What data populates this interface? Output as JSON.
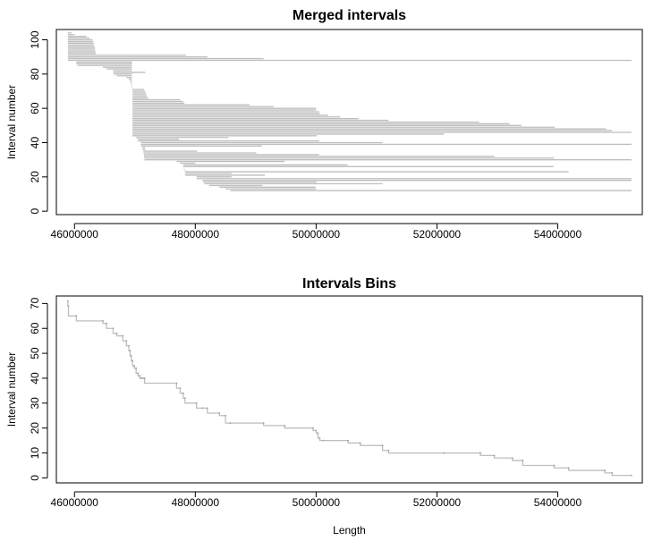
{
  "chart_data": [
    {
      "type": "line",
      "title": "Merged intervals",
      "xlabel": "",
      "ylabel": "Interval number",
      "xlim": [
        45700000,
        55400000
      ],
      "ylim": [
        -2,
        106
      ],
      "xticks": [
        46000000,
        48000000,
        50000000,
        52000000,
        54000000
      ],
      "xtick_labels": [
        "46000000",
        "48000000",
        "50000000",
        "52000000",
        "54000000"
      ],
      "yticks": [
        0,
        20,
        40,
        60,
        80,
        100
      ],
      "ytick_labels": [
        "0",
        "20",
        "40",
        "60",
        "80",
        "100"
      ],
      "series_color": "#bebebe",
      "grid": false,
      "legend": "none",
      "segments": [
        [
          45890000,
          45950000,
          104
        ],
        [
          45890000,
          46000000,
          103
        ],
        [
          45890000,
          46200000,
          102
        ],
        [
          45890000,
          46250000,
          101
        ],
        [
          45890000,
          46300000,
          100
        ],
        [
          45890000,
          46310000,
          99
        ],
        [
          45890000,
          46320000,
          98
        ],
        [
          45890000,
          46320000,
          97
        ],
        [
          45890000,
          46330000,
          96
        ],
        [
          45890000,
          46340000,
          95
        ],
        [
          45890000,
          46340000,
          94
        ],
        [
          45890000,
          46350000,
          93
        ],
        [
          45890000,
          46350000,
          92
        ],
        [
          45890000,
          47850000,
          91
        ],
        [
          45890000,
          48200000,
          90
        ],
        [
          45890000,
          49130000,
          89
        ],
        [
          45890000,
          55220000,
          88
        ],
        [
          46030000,
          46950000,
          87
        ],
        [
          46030000,
          46950000,
          86
        ],
        [
          46050000,
          46950000,
          85
        ],
        [
          46470000,
          46950000,
          84
        ],
        [
          46530000,
          46950000,
          83
        ],
        [
          46640000,
          46950000,
          82
        ],
        [
          46640000,
          47170000,
          81
        ],
        [
          46650000,
          46950000,
          80
        ],
        [
          46700000,
          46950000,
          79
        ],
        [
          46860000,
          46950000,
          78
        ],
        [
          46900000,
          46950000,
          77
        ],
        [
          46920000,
          46950000,
          76
        ],
        [
          46930000,
          46950000,
          75
        ],
        [
          46940000,
          46950000,
          74
        ],
        [
          46950000,
          46960000,
          73
        ],
        [
          46950000,
          46960000,
          72
        ],
        [
          46960000,
          47150000,
          71
        ],
        [
          46960000,
          47170000,
          70
        ],
        [
          46960000,
          47180000,
          69
        ],
        [
          46960000,
          47190000,
          68
        ],
        [
          46960000,
          47200000,
          67
        ],
        [
          46960000,
          47220000,
          66
        ],
        [
          46960000,
          47750000,
          65
        ],
        [
          46960000,
          47800000,
          64
        ],
        [
          46960000,
          47820000,
          63
        ],
        [
          46960000,
          48900000,
          62
        ],
        [
          46960000,
          49300000,
          61
        ],
        [
          46960000,
          50000000,
          60
        ],
        [
          46960000,
          50000000,
          59
        ],
        [
          46960000,
          50050000,
          58
        ],
        [
          46960000,
          50060000,
          57
        ],
        [
          46960000,
          50200000,
          56
        ],
        [
          46960000,
          50400000,
          55
        ],
        [
          46960000,
          50700000,
          54
        ],
        [
          46960000,
          51200000,
          53
        ],
        [
          46960000,
          52700000,
          52
        ],
        [
          46960000,
          53200000,
          51
        ],
        [
          46960000,
          53400000,
          50
        ],
        [
          46960000,
          53950000,
          49
        ],
        [
          46960000,
          54800000,
          48
        ],
        [
          46960000,
          54900000,
          47
        ],
        [
          46960000,
          55220000,
          46
        ],
        [
          46960000,
          52120000,
          45
        ],
        [
          46960000,
          50010000,
          44
        ],
        [
          47020000,
          48550000,
          43
        ],
        [
          47050000,
          47730000,
          42
        ],
        [
          47050000,
          50050000,
          41
        ],
        [
          47100000,
          51100000,
          40
        ],
        [
          47100000,
          55220000,
          39
        ],
        [
          47100000,
          49100000,
          38
        ],
        [
          47120000,
          47170000,
          37
        ],
        [
          47130000,
          47170000,
          36
        ],
        [
          47140000,
          48030000,
          35
        ],
        [
          47140000,
          49010000,
          34
        ],
        [
          47150000,
          50050000,
          33
        ],
        [
          47150000,
          52950000,
          32
        ],
        [
          47150000,
          53940000,
          31
        ],
        [
          47160000,
          55220000,
          30
        ],
        [
          47690000,
          49480000,
          29
        ],
        [
          47750000,
          48000000,
          28
        ],
        [
          47800000,
          50520000,
          27
        ],
        [
          47800000,
          53930000,
          26
        ],
        [
          47810000,
          47820000,
          25
        ],
        [
          47820000,
          47830000,
          24
        ],
        [
          47830000,
          54180000,
          23
        ],
        [
          47830000,
          48600000,
          22
        ],
        [
          47830000,
          49150000,
          21
        ],
        [
          48020000,
          48600000,
          20
        ],
        [
          48020000,
          55220000,
          19
        ],
        [
          48120000,
          55220000,
          18
        ],
        [
          48130000,
          50010000,
          17
        ],
        [
          48150000,
          51100000,
          16
        ],
        [
          48230000,
          49110000,
          15
        ],
        [
          48400000,
          49990000,
          14
        ],
        [
          48500000,
          50000000,
          13
        ],
        [
          48580000,
          55220000,
          12
        ]
      ]
    },
    {
      "type": "line",
      "title": "Intervals Bins",
      "xlabel": "Length",
      "ylabel": "Interval number",
      "xlim": [
        45700000,
        55400000
      ],
      "ylim": [
        -2,
        73
      ],
      "xticks": [
        46000000,
        48000000,
        50000000,
        52000000,
        54000000
      ],
      "xtick_labels": [
        "46000000",
        "48000000",
        "50000000",
        "52000000",
        "54000000"
      ],
      "yticks": [
        0,
        10,
        20,
        30,
        40,
        50,
        60,
        70
      ],
      "ytick_labels": [
        "0",
        "10",
        "20",
        "30",
        "40",
        "50",
        "60",
        "70"
      ],
      "series_color": "#bebebe",
      "grid": false,
      "legend": "none",
      "x": [
        45890000,
        45900000,
        46030000,
        46470000,
        46530000,
        46640000,
        46700000,
        46800000,
        46860000,
        46900000,
        46920000,
        46940000,
        46960000,
        46990000,
        47020000,
        47050000,
        47080000,
        47100000,
        47130000,
        47160000,
        47690000,
        47750000,
        47800000,
        47830000,
        48020000,
        48120000,
        48200000,
        48400000,
        48500000,
        48580000,
        49130000,
        49480000,
        49950000,
        50000000,
        50030000,
        50060000,
        50120000,
        50530000,
        50730000,
        51100000,
        51200000,
        52120000,
        52720000,
        52950000,
        53250000,
        53420000,
        53940000,
        54180000,
        54780000,
        54900000,
        55220000
      ],
      "y": [
        71,
        69,
        65,
        63,
        62,
        60,
        58,
        57,
        55,
        53,
        51,
        49,
        47,
        45,
        44,
        42,
        41,
        40,
        40,
        40,
        38,
        36,
        34,
        32,
        30,
        28,
        28,
        26,
        25,
        22,
        22,
        21,
        20,
        19,
        18,
        16,
        15,
        15,
        14,
        13,
        11,
        10,
        10,
        9,
        8,
        7,
        5,
        4,
        3,
        2,
        1
      ]
    }
  ]
}
